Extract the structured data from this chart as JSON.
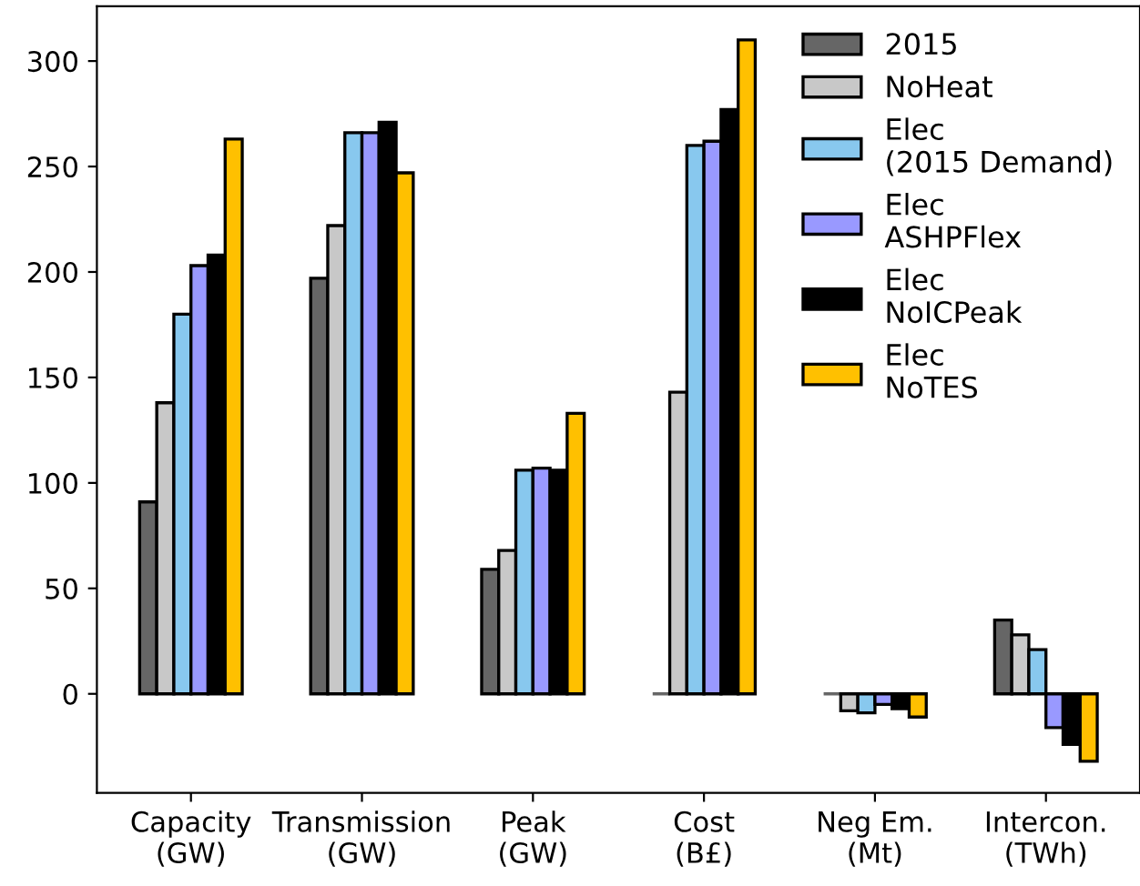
{
  "chart_data": {
    "type": "bar",
    "categories": [
      "Capacity\n(GW)",
      "Transmission\n(GW)",
      "Peak\n(GW)",
      "Cost\n(B£)",
      "Neg Em.\n(Mt)",
      "Intercon.\n(TWh)"
    ],
    "series": [
      {
        "name": "2015",
        "color": "#666666",
        "values": [
          91,
          197,
          59,
          0,
          0,
          35
        ]
      },
      {
        "name": "NoHeat",
        "color": "#c8c8c8",
        "values": [
          138,
          222,
          68,
          143,
          -8,
          28
        ]
      },
      {
        "name": "Elec\n(2015 Demand)",
        "color": "#88c8ee",
        "values": [
          180,
          266,
          106,
          260,
          -9,
          21
        ]
      },
      {
        "name": "Elec\nASHPFlex",
        "color": "#9999ff",
        "values": [
          203,
          266,
          107,
          262,
          -5,
          -16
        ]
      },
      {
        "name": "Elec\nNoICPeak",
        "color": "#000000",
        "values": [
          208,
          271,
          106,
          277,
          -7,
          -24
        ]
      },
      {
        "name": "Elec\nNoTES",
        "color": "#ffc000",
        "values": [
          263,
          247,
          133,
          310,
          -11,
          -32
        ]
      }
    ],
    "ylim": [
      -47,
      326
    ],
    "yticks": [
      0,
      50,
      100,
      150,
      200,
      250,
      300
    ],
    "grid": false,
    "legend": "top right"
  }
}
